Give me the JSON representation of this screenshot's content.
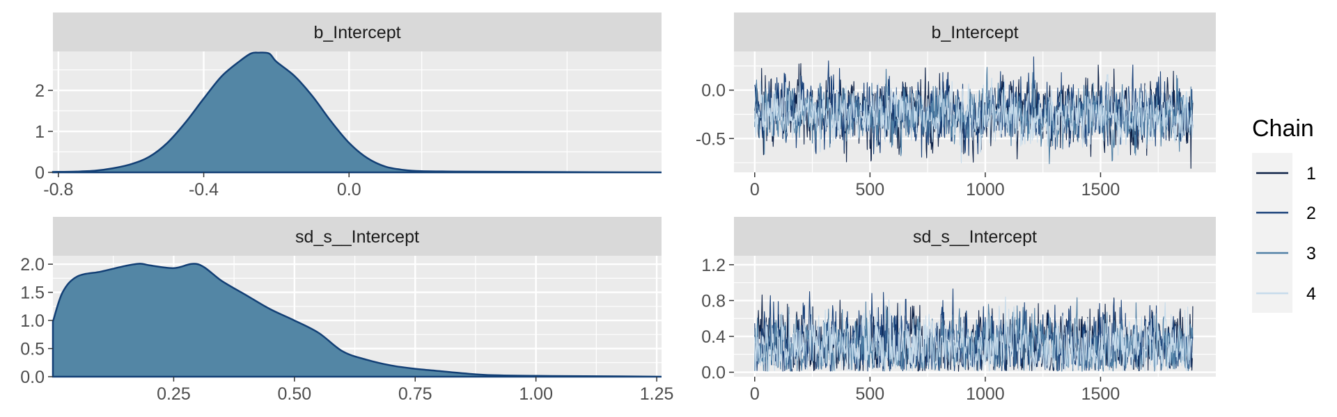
{
  "chart_data": [
    {
      "type": "area",
      "panel": "density",
      "title": "b_Intercept",
      "xlim": [
        -0.815,
        1.5
      ],
      "xmax_visible": 0.86,
      "ylim": [
        0,
        2.95
      ],
      "xticks": [
        -0.8,
        -0.4,
        0.0
      ],
      "xtick_labels": [
        "-0.8",
        "-0.4",
        "0.0"
      ],
      "yticks": [
        0,
        1,
        2
      ],
      "ytick_labels": [
        "0",
        "1",
        "2"
      ],
      "x": [
        -0.815,
        -0.75,
        -0.7,
        -0.65,
        -0.6,
        -0.55,
        -0.5,
        -0.45,
        -0.4,
        -0.35,
        -0.3,
        -0.27,
        -0.25,
        -0.22,
        -0.2,
        -0.15,
        -0.1,
        -0.05,
        0.0,
        0.05,
        0.1,
        0.15,
        0.2,
        0.3,
        0.5,
        0.86
      ],
      "y": [
        0.01,
        0.02,
        0.04,
        0.1,
        0.2,
        0.38,
        0.72,
        1.22,
        1.8,
        2.35,
        2.72,
        2.9,
        2.92,
        2.9,
        2.7,
        2.35,
        1.85,
        1.25,
        0.72,
        0.35,
        0.14,
        0.06,
        0.03,
        0.02,
        0.01,
        0.0
      ]
    },
    {
      "type": "line",
      "panel": "trace",
      "title": "b_Intercept",
      "xlim": [
        -90,
        2000
      ],
      "ylim": [
        -0.85,
        0.4
      ],
      "xticks": [
        0,
        500,
        1000,
        1500
      ],
      "xtick_labels": [
        "0",
        "500",
        "1000",
        "1500"
      ],
      "yticks": [
        0.0,
        -0.5
      ],
      "ytick_labels": [
        "0.0",
        "-0.5"
      ],
      "iterations": 1900,
      "series": [
        {
          "name": "1",
          "mean": -0.25,
          "sd": 0.17
        },
        {
          "name": "2",
          "mean": -0.25,
          "sd": 0.17
        },
        {
          "name": "3",
          "mean": -0.26,
          "sd": 0.15
        },
        {
          "name": "4",
          "mean": -0.26,
          "sd": 0.14
        }
      ]
    },
    {
      "type": "area",
      "panel": "density",
      "title": "sd_s__Intercept",
      "xlim": [
        0.0,
        1.26
      ],
      "ylim": [
        0,
        2.15
      ],
      "xticks": [
        0.25,
        0.5,
        0.75,
        1.0,
        1.25
      ],
      "xtick_labels": [
        "0.25",
        "0.50",
        "0.75",
        "1.00",
        "1.25"
      ],
      "yticks": [
        0.0,
        0.5,
        1.0,
        1.5,
        2.0
      ],
      "ytick_labels": [
        "0.0",
        "0.5",
        "1.0",
        "1.5",
        "2.0"
      ],
      "x": [
        0.0,
        0.02,
        0.05,
        0.1,
        0.15,
        0.18,
        0.2,
        0.25,
        0.3,
        0.35,
        0.4,
        0.45,
        0.5,
        0.55,
        0.6,
        0.65,
        0.7,
        0.75,
        0.8,
        0.85,
        0.9,
        1.0,
        1.1,
        1.26
      ],
      "y": [
        0.98,
        1.5,
        1.78,
        1.87,
        1.97,
        2.01,
        1.98,
        1.93,
        2.0,
        1.7,
        1.45,
        1.2,
        1.0,
        0.78,
        0.45,
        0.3,
        0.2,
        0.14,
        0.1,
        0.06,
        0.03,
        0.015,
        0.01,
        0.0
      ]
    },
    {
      "type": "line",
      "panel": "trace",
      "title": "sd_s__Intercept",
      "xlim": [
        -90,
        2000
      ],
      "ylim": [
        -0.05,
        1.3
      ],
      "xticks": [
        0,
        500,
        1000,
        1500
      ],
      "xtick_labels": [
        "0",
        "500",
        "1000",
        "1500"
      ],
      "yticks": [
        0.0,
        0.4,
        0.8,
        1.2
      ],
      "ytick_labels": [
        "0.0",
        "0.4",
        "0.8",
        "1.2"
      ],
      "iterations": 1900,
      "series": [
        {
          "name": "1",
          "mean": 0.3,
          "sd": 0.2
        },
        {
          "name": "2",
          "mean": 0.3,
          "sd": 0.2
        },
        {
          "name": "3",
          "mean": 0.28,
          "sd": 0.18
        },
        {
          "name": "4",
          "mean": 0.28,
          "sd": 0.17
        }
      ]
    }
  ],
  "legend": {
    "title": "Chain",
    "entries": [
      "1",
      "2",
      "3",
      "4"
    ]
  },
  "colors": {
    "panel_bg": "#ebebeb",
    "strip_bg": "#d9d9d9",
    "grid": "#ffffff",
    "density_fill": "#5386a5",
    "density_line": "#123f75",
    "chains": [
      "#0b1f45",
      "#173f78",
      "#4f7fa5",
      "#c6dbeb"
    ]
  }
}
